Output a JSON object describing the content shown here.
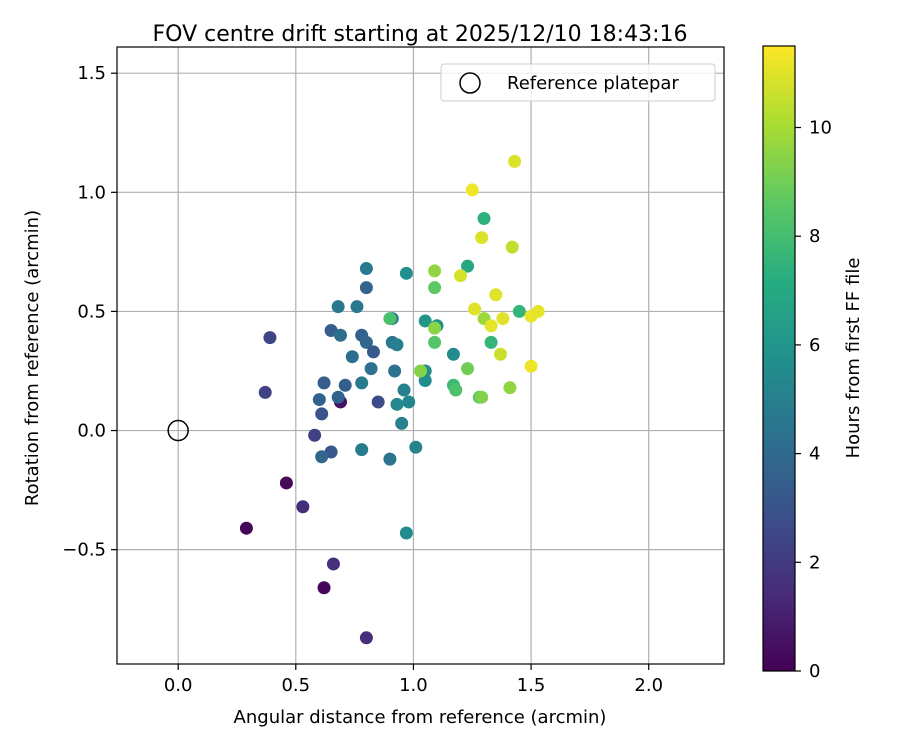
{
  "chart_data": {
    "type": "scatter",
    "title": "FOV centre drift starting at 2025/12/10 18:43:16",
    "xlabel": "Angular distance from reference (arcmin)",
    "ylabel": "Rotation from reference (arcmin)",
    "xlim": [
      -0.26,
      2.32
    ],
    "ylim": [
      -0.98,
      1.61
    ],
    "xticks": [
      0.0,
      0.5,
      1.0,
      1.5,
      2.0
    ],
    "xtick_labels": [
      "0.0",
      "0.5",
      "1.0",
      "1.5",
      "2.0"
    ],
    "yticks": [
      -0.5,
      0.0,
      0.5,
      1.0,
      1.5
    ],
    "ytick_labels": [
      "−0.5",
      "0.0",
      "0.5",
      "1.0",
      "1.5"
    ],
    "grid": true,
    "legend": {
      "label": "Reference platepar",
      "placement": "top-right"
    },
    "reference_point": {
      "x": 0.0,
      "y": 0.0
    },
    "colorbar": {
      "label": "Hours from first FF file",
      "range": [
        0,
        11.5
      ],
      "ticks": [
        0,
        2,
        4,
        6,
        8,
        10
      ],
      "tick_labels": [
        "0",
        "2",
        "4",
        "6",
        "8",
        "10"
      ],
      "colormap": "viridis"
    },
    "points": [
      {
        "x": 0.29,
        "y": -0.41,
        "t": 0.1
      },
      {
        "x": 0.46,
        "y": -0.22,
        "t": 0.3
      },
      {
        "x": 0.62,
        "y": -0.66,
        "t": 0.2
      },
      {
        "x": 0.69,
        "y": 0.12,
        "t": 0.5
      },
      {
        "x": 0.53,
        "y": -0.32,
        "t": 1.5
      },
      {
        "x": 0.66,
        "y": -0.56,
        "t": 1.6
      },
      {
        "x": 0.8,
        "y": -0.87,
        "t": 1.5
      },
      {
        "x": 0.37,
        "y": 0.16,
        "t": 2.3
      },
      {
        "x": 0.39,
        "y": 0.39,
        "t": 2.4
      },
      {
        "x": 0.58,
        "y": -0.02,
        "t": 2.2
      },
      {
        "x": 0.61,
        "y": 0.07,
        "t": 3.0
      },
      {
        "x": 0.85,
        "y": 0.12,
        "t": 2.7
      },
      {
        "x": 0.65,
        "y": -0.09,
        "t": 3.2
      },
      {
        "x": 0.62,
        "y": 0.2,
        "t": 3.4
      },
      {
        "x": 0.6,
        "y": 0.13,
        "t": 3.6
      },
      {
        "x": 0.61,
        "y": -0.11,
        "t": 3.8
      },
      {
        "x": 0.65,
        "y": 0.42,
        "t": 3.4
      },
      {
        "x": 0.71,
        "y": 0.19,
        "t": 3.5
      },
      {
        "x": 0.68,
        "y": 0.14,
        "t": 3.7
      },
      {
        "x": 0.78,
        "y": 0.4,
        "t": 3.6
      },
      {
        "x": 0.8,
        "y": 0.37,
        "t": 3.8
      },
      {
        "x": 0.83,
        "y": 0.33,
        "t": 3.3
      },
      {
        "x": 0.8,
        "y": 0.6,
        "t": 3.7
      },
      {
        "x": 0.74,
        "y": 0.31,
        "t": 4.2
      },
      {
        "x": 0.69,
        "y": 0.4,
        "t": 4.2
      },
      {
        "x": 0.68,
        "y": 0.52,
        "t": 4.6
      },
      {
        "x": 0.76,
        "y": 0.52,
        "t": 4.7
      },
      {
        "x": 0.8,
        "y": 0.68,
        "t": 4.7
      },
      {
        "x": 0.82,
        "y": 0.26,
        "t": 4.3
      },
      {
        "x": 0.78,
        "y": 0.2,
        "t": 4.8
      },
      {
        "x": 0.78,
        "y": -0.08,
        "t": 4.8
      },
      {
        "x": 0.9,
        "y": -0.12,
        "t": 4.4
      },
      {
        "x": 0.92,
        "y": 0.25,
        "t": 4.4
      },
      {
        "x": 0.91,
        "y": 0.37,
        "t": 4.6
      },
      {
        "x": 0.93,
        "y": 0.36,
        "t": 5.0
      },
      {
        "x": 0.91,
        "y": 0.47,
        "t": 4.8
      },
      {
        "x": 0.95,
        "y": 0.03,
        "t": 5.0
      },
      {
        "x": 0.96,
        "y": 0.17,
        "t": 5.0
      },
      {
        "x": 0.98,
        "y": 0.12,
        "t": 5.3
      },
      {
        "x": 0.93,
        "y": 0.11,
        "t": 5.4
      },
      {
        "x": 1.01,
        "y": -0.07,
        "t": 5.2
      },
      {
        "x": 0.97,
        "y": -0.43,
        "t": 5.6
      },
      {
        "x": 0.97,
        "y": 0.66,
        "t": 5.7
      },
      {
        "x": 1.05,
        "y": 0.21,
        "t": 5.6
      },
      {
        "x": 1.05,
        "y": 0.25,
        "t": 5.6
      },
      {
        "x": 1.05,
        "y": 0.46,
        "t": 6.0
      },
      {
        "x": 1.1,
        "y": 0.44,
        "t": 5.8
      },
      {
        "x": 1.17,
        "y": 0.32,
        "t": 5.5
      },
      {
        "x": 1.23,
        "y": 0.69,
        "t": 7.0
      },
      {
        "x": 1.3,
        "y": 0.89,
        "t": 7.4
      },
      {
        "x": 1.33,
        "y": 0.37,
        "t": 7.6
      },
      {
        "x": 1.45,
        "y": 0.5,
        "t": 7.6
      },
      {
        "x": 1.17,
        "y": 0.19,
        "t": 7.8
      },
      {
        "x": 0.9,
        "y": 0.47,
        "t": 8.2
      },
      {
        "x": 1.18,
        "y": 0.17,
        "t": 8.2
      },
      {
        "x": 1.09,
        "y": 0.37,
        "t": 8.4
      },
      {
        "x": 1.09,
        "y": 0.6,
        "t": 8.6
      },
      {
        "x": 1.28,
        "y": 0.14,
        "t": 8.6
      },
      {
        "x": 1.23,
        "y": 0.26,
        "t": 9.0
      },
      {
        "x": 1.29,
        "y": 0.14,
        "t": 9.3
      },
      {
        "x": 1.03,
        "y": 0.25,
        "t": 9.4
      },
      {
        "x": 1.09,
        "y": 0.43,
        "t": 9.5
      },
      {
        "x": 1.09,
        "y": 0.67,
        "t": 9.6
      },
      {
        "x": 1.3,
        "y": 0.47,
        "t": 9.8
      },
      {
        "x": 1.41,
        "y": 0.18,
        "t": 9.6
      },
      {
        "x": 1.42,
        "y": 0.77,
        "t": 10.5
      },
      {
        "x": 1.37,
        "y": 0.32,
        "t": 10.6
      },
      {
        "x": 1.2,
        "y": 0.65,
        "t": 10.8
      },
      {
        "x": 1.29,
        "y": 0.81,
        "t": 10.9
      },
      {
        "x": 1.43,
        "y": 1.13,
        "t": 10.9
      },
      {
        "x": 1.35,
        "y": 0.57,
        "t": 11.0
      },
      {
        "x": 1.26,
        "y": 0.51,
        "t": 11.0
      },
      {
        "x": 1.33,
        "y": 0.44,
        "t": 11.1
      },
      {
        "x": 1.38,
        "y": 0.47,
        "t": 11.0
      },
      {
        "x": 1.5,
        "y": 0.27,
        "t": 11.2
      },
      {
        "x": 1.5,
        "y": 0.48,
        "t": 11.2
      },
      {
        "x": 1.53,
        "y": 0.5,
        "t": 11.1
      },
      {
        "x": 1.25,
        "y": 1.01,
        "t": 11.3
      }
    ]
  }
}
